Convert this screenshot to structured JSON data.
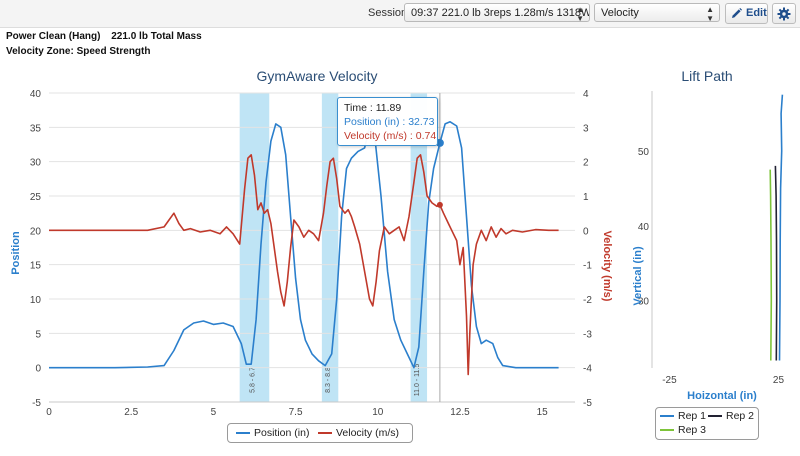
{
  "header": {
    "session_label": "Session",
    "session_value": "09:37 221.0 lb 3reps 1.28m/s 1318W",
    "metric_value": "Velocity",
    "edit_label": "Edit",
    "exercise": "Power Clean (Hang)",
    "mass": "221.0 lb Total Mass",
    "zone": "Velocity Zone: Speed Strength"
  },
  "colors": {
    "position": "#2b7fcc",
    "velocity": "#c0392b",
    "rep1": "#2b7fcc",
    "rep2": "#222233",
    "rep3": "#7ec43a",
    "band": "#bfe4f5"
  },
  "icons": {
    "edit": "pencil-icon",
    "settings": "gear-icon"
  },
  "chart_data": [
    {
      "type": "line",
      "title": "GymAware Velocity",
      "xlabel": "",
      "ylabel": "Position",
      "ylabel_right": "Velocity (m/s)",
      "xlim": [
        0,
        16
      ],
      "ylim": [
        -5,
        40
      ],
      "ylim_right": [
        -5,
        4
      ],
      "x_ticks": [
        "0",
        "2.5",
        "5",
        "7.5",
        "10",
        "12.5",
        "15"
      ],
      "y_ticks": [
        "-5",
        "0",
        "5",
        "10",
        "15",
        "20",
        "25",
        "30",
        "35",
        "40"
      ],
      "y_ticks_right": [
        "-5",
        "-4",
        "-3",
        "-2",
        "-1",
        "0",
        "1",
        "2",
        "3",
        "4"
      ],
      "legend": [
        "Position (in)",
        "Velocity (m/s)"
      ],
      "grid": "horizontal",
      "bands": [
        {
          "from": 5.8,
          "to": 6.7,
          "label": "5.8 - 6.7"
        },
        {
          "from": 8.3,
          "to": 8.8,
          "label": "8.3 - 8.8"
        },
        {
          "from": 11.0,
          "to": 11.5,
          "label": "11.0 - 11.5"
        }
      ],
      "tooltip": {
        "time": "Time : 11.89",
        "position": "Position (in) : 32.73",
        "velocity": "Velocity (m/s) : 0.74",
        "x": 11.89
      },
      "series": [
        {
          "name": "Position (in)",
          "axis": "left",
          "points": [
            [
              0,
              0
            ],
            [
              1,
              0
            ],
            [
              2,
              0
            ],
            [
              3,
              0.1
            ],
            [
              3.5,
              0.3
            ],
            [
              3.8,
              2.5
            ],
            [
              4.1,
              5.5
            ],
            [
              4.4,
              6.5
            ],
            [
              4.7,
              6.8
            ],
            [
              5.0,
              6.3
            ],
            [
              5.3,
              6.5
            ],
            [
              5.6,
              6.0
            ],
            [
              5.85,
              3.5
            ],
            [
              6.0,
              0.5
            ],
            [
              6.15,
              0.5
            ],
            [
              6.3,
              7
            ],
            [
              6.45,
              18
            ],
            [
              6.6,
              27
            ],
            [
              6.75,
              33
            ],
            [
              6.9,
              35.5
            ],
            [
              7.05,
              35
            ],
            [
              7.2,
              31
            ],
            [
              7.35,
              22
            ],
            [
              7.5,
              13
            ],
            [
              7.65,
              7
            ],
            [
              7.8,
              4
            ],
            [
              8.0,
              2
            ],
            [
              8.2,
              1
            ],
            [
              8.4,
              0.3
            ],
            [
              8.6,
              2
            ],
            [
              8.75,
              10
            ],
            [
              8.9,
              22
            ],
            [
              9.05,
              29
            ],
            [
              9.2,
              30.5
            ],
            [
              9.4,
              31.5
            ],
            [
              9.6,
              32
            ],
            [
              9.75,
              35
            ],
            [
              9.9,
              34
            ],
            [
              10.1,
              25
            ],
            [
              10.3,
              14
            ],
            [
              10.5,
              7
            ],
            [
              10.7,
              4
            ],
            [
              10.95,
              1.5
            ],
            [
              11.1,
              0
            ],
            [
              11.25,
              3
            ],
            [
              11.4,
              14
            ],
            [
              11.55,
              24
            ],
            [
              11.7,
              29
            ],
            [
              11.89,
              32.73
            ],
            [
              12.05,
              35.5
            ],
            [
              12.2,
              35.8
            ],
            [
              12.4,
              35.2
            ],
            [
              12.55,
              32
            ],
            [
              12.7,
              22
            ],
            [
              12.85,
              12
            ],
            [
              13.0,
              6
            ],
            [
              13.15,
              3.5
            ],
            [
              13.3,
              4
            ],
            [
              13.5,
              3.5
            ],
            [
              13.65,
              1.5
            ],
            [
              13.8,
              0.3
            ],
            [
              14.2,
              0
            ],
            [
              15.0,
              0
            ],
            [
              15.5,
              0
            ]
          ]
        },
        {
          "name": "Velocity (m/s)",
          "axis": "right",
          "points": [
            [
              0,
              0
            ],
            [
              1,
              0
            ],
            [
              2,
              0
            ],
            [
              3,
              0
            ],
            [
              3.5,
              0.1
            ],
            [
              3.65,
              0.3
            ],
            [
              3.8,
              0.5
            ],
            [
              3.95,
              0.2
            ],
            [
              4.1,
              0
            ],
            [
              4.3,
              0.05
            ],
            [
              4.6,
              -0.05
            ],
            [
              4.9,
              0
            ],
            [
              5.2,
              -0.1
            ],
            [
              5.4,
              0.1
            ],
            [
              5.6,
              -0.1
            ],
            [
              5.8,
              -0.4
            ],
            [
              5.95,
              1.2
            ],
            [
              6.05,
              2.1
            ],
            [
              6.15,
              2.2
            ],
            [
              6.25,
              1.6
            ],
            [
              6.35,
              0.6
            ],
            [
              6.45,
              0.8
            ],
            [
              6.55,
              0.5
            ],
            [
              6.65,
              0.6
            ],
            [
              6.75,
              0.2
            ],
            [
              6.85,
              -0.5
            ],
            [
              6.95,
              -1.2
            ],
            [
              7.05,
              -1.8
            ],
            [
              7.15,
              -2.2
            ],
            [
              7.25,
              -1.5
            ],
            [
              7.35,
              -0.5
            ],
            [
              7.45,
              0.3
            ],
            [
              7.6,
              0.1
            ],
            [
              7.75,
              -0.2
            ],
            [
              7.9,
              0
            ],
            [
              8.05,
              -0.1
            ],
            [
              8.2,
              -0.3
            ],
            [
              8.35,
              0.5
            ],
            [
              8.45,
              1.3
            ],
            [
              8.55,
              2.0
            ],
            [
              8.65,
              2.1
            ],
            [
              8.75,
              1.5
            ],
            [
              8.85,
              0.7
            ],
            [
              9.0,
              0.5
            ],
            [
              9.1,
              0.6
            ],
            [
              9.2,
              0.4
            ],
            [
              9.3,
              0.1
            ],
            [
              9.45,
              -0.4
            ],
            [
              9.6,
              -1.2
            ],
            [
              9.75,
              -2.0
            ],
            [
              9.85,
              -2.2
            ],
            [
              9.95,
              -1.5
            ],
            [
              10.05,
              -0.6
            ],
            [
              10.2,
              0.1
            ],
            [
              10.35,
              -0.1
            ],
            [
              10.5,
              0
            ],
            [
              10.65,
              0.1
            ],
            [
              10.8,
              -0.3
            ],
            [
              10.95,
              0.4
            ],
            [
              11.1,
              1.4
            ],
            [
              11.2,
              2.1
            ],
            [
              11.3,
              2.2
            ],
            [
              11.4,
              1.7
            ],
            [
              11.5,
              1.0
            ],
            [
              11.65,
              0.8
            ],
            [
              11.8,
              0.7
            ],
            [
              11.89,
              0.74
            ],
            [
              12.0,
              0.5
            ],
            [
              12.15,
              0.2
            ],
            [
              12.25,
              0
            ],
            [
              12.4,
              -0.3
            ],
            [
              12.5,
              -1.0
            ],
            [
              12.6,
              -0.5
            ],
            [
              12.7,
              -2.5
            ],
            [
              12.75,
              -4.2
            ],
            [
              12.8,
              -3.0
            ],
            [
              12.9,
              -1.0
            ],
            [
              13.0,
              -0.4
            ],
            [
              13.15,
              0
            ],
            [
              13.3,
              -0.3
            ],
            [
              13.45,
              0.1
            ],
            [
              13.6,
              -0.2
            ],
            [
              13.75,
              0.05
            ],
            [
              13.9,
              -0.1
            ],
            [
              14.1,
              0
            ],
            [
              14.4,
              -0.05
            ],
            [
              14.8,
              0.02
            ],
            [
              15.2,
              0
            ],
            [
              15.5,
              0
            ]
          ]
        }
      ]
    },
    {
      "type": "line",
      "title": "Lift Path",
      "xlabel": "Hoizontal (in)",
      "ylabel": "Vertical (in)",
      "xlim": [
        -33,
        28
      ],
      "ylim": [
        21,
        58
      ],
      "x_ticks": [
        "-25",
        "25"
      ],
      "y_ticks": [
        "30",
        "40",
        "50"
      ],
      "legend": [
        "Rep 1",
        "Rep 2",
        "Rep 3"
      ],
      "series": [
        {
          "name": "Rep 1",
          "points": [
            [
              25.5,
              22
            ],
            [
              25.7,
              30
            ],
            [
              25.8,
              38
            ],
            [
              26.0,
              45
            ],
            [
              26.5,
              50
            ],
            [
              26.2,
              55
            ],
            [
              26.8,
              57.5
            ]
          ]
        },
        {
          "name": "Rep 2",
          "points": [
            [
              24.0,
              22
            ],
            [
              24.2,
              30
            ],
            [
              24.1,
              38
            ],
            [
              23.9,
              44
            ],
            [
              23.6,
              48
            ]
          ]
        },
        {
          "name": "Rep 3",
          "points": [
            [
              21.5,
              22
            ],
            [
              21.7,
              30
            ],
            [
              21.6,
              38
            ],
            [
              21.4,
              44
            ],
            [
              21.2,
              47.5
            ]
          ]
        }
      ]
    }
  ]
}
